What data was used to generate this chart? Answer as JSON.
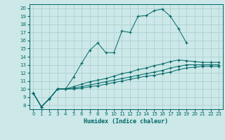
{
  "xlabel": "Humidex (Indice chaleur)",
  "bg_color": "#cce8e8",
  "line_color": "#006666",
  "grid_color": "#aacccc",
  "xlim": [
    -0.5,
    23.5
  ],
  "ylim": [
    7.5,
    20.5
  ],
  "xticks": [
    0,
    1,
    2,
    3,
    4,
    5,
    6,
    7,
    8,
    9,
    10,
    11,
    12,
    13,
    14,
    15,
    16,
    17,
    18,
    19,
    20,
    21,
    22,
    23
  ],
  "yticks": [
    8,
    9,
    10,
    11,
    12,
    13,
    14,
    15,
    16,
    17,
    18,
    19,
    20
  ],
  "line1_x": [
    0,
    1,
    2,
    3,
    4,
    5,
    6,
    7,
    8,
    9,
    10,
    11,
    12,
    13,
    14,
    15,
    16,
    17,
    18,
    19
  ],
  "line1_y": [
    9.5,
    7.8,
    8.8,
    10.0,
    10.0,
    11.5,
    13.2,
    14.8,
    15.7,
    14.5,
    14.5,
    17.2,
    17.0,
    19.0,
    19.1,
    19.7,
    19.9,
    19.0,
    17.5,
    15.7
  ],
  "line2_x": [
    0,
    1,
    2,
    3,
    4,
    5,
    6,
    7,
    8,
    9,
    10,
    11,
    12,
    13,
    14,
    15,
    16,
    17,
    18,
    19,
    20,
    21,
    22,
    23
  ],
  "line2_y": [
    9.5,
    7.8,
    8.8,
    10.0,
    10.0,
    10.3,
    10.6,
    10.9,
    11.1,
    11.3,
    11.6,
    11.9,
    12.1,
    12.4,
    12.6,
    12.9,
    13.1,
    13.4,
    13.6,
    13.5,
    13.4,
    13.3,
    13.3,
    13.3
  ],
  "line3_x": [
    0,
    1,
    2,
    3,
    4,
    5,
    6,
    7,
    8,
    9,
    10,
    11,
    12,
    13,
    14,
    15,
    16,
    17,
    18,
    19,
    20,
    21,
    22,
    23
  ],
  "line3_y": [
    9.5,
    7.8,
    8.8,
    10.0,
    10.0,
    10.1,
    10.3,
    10.5,
    10.7,
    10.9,
    11.1,
    11.3,
    11.5,
    11.7,
    11.9,
    12.1,
    12.3,
    12.6,
    12.8,
    13.0,
    13.0,
    13.0,
    13.0,
    13.0
  ],
  "line4_x": [
    0,
    1,
    2,
    3,
    4,
    5,
    6,
    7,
    8,
    9,
    10,
    11,
    12,
    13,
    14,
    15,
    16,
    17,
    18,
    19,
    20,
    21,
    22,
    23
  ],
  "line4_y": [
    9.5,
    7.8,
    8.8,
    10.0,
    10.0,
    10.0,
    10.1,
    10.3,
    10.4,
    10.6,
    10.8,
    11.0,
    11.2,
    11.4,
    11.6,
    11.7,
    11.9,
    12.1,
    12.4,
    12.6,
    12.7,
    12.8,
    12.8,
    12.8
  ]
}
